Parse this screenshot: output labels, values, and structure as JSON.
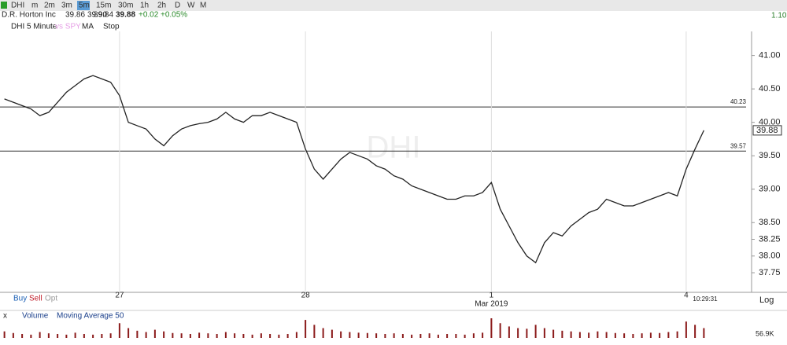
{
  "toolbar": {
    "symbol": "DHI",
    "intervals": [
      "m",
      "2m",
      "3m",
      "5m",
      "15m",
      "30m",
      "1h",
      "2h",
      "D",
      "W",
      "M"
    ],
    "active_interval": "5m",
    "right_value": "1.10"
  },
  "quote": {
    "name": "D.R. Horton Inc",
    "open": "39.86",
    "high": "39.90",
    "low": "39.84",
    "last": "39.88",
    "change": "+0.02",
    "change_pct": "+0.05%"
  },
  "study_bar": {
    "label": "DHI 5 Minute",
    "compare": "vs SPY",
    "ma": "MA",
    "stop": "Stop"
  },
  "chart_data": {
    "type": "line",
    "watermark": "DHI",
    "color": "#222222",
    "categories": [
      null,
      null,
      null,
      null,
      null,
      null,
      null,
      null,
      null,
      null,
      null,
      null,
      null,
      "27",
      null,
      null,
      null,
      null,
      null,
      null,
      null,
      null,
      null,
      null,
      null,
      null,
      null,
      null,
      null,
      null,
      null,
      null,
      null,
      null,
      "28",
      null,
      null,
      null,
      null,
      null,
      null,
      null,
      null,
      null,
      null,
      null,
      null,
      null,
      null,
      null,
      null,
      null,
      null,
      null,
      null,
      "1",
      null,
      null,
      null,
      null,
      null,
      null,
      null,
      null,
      null,
      null,
      null,
      null,
      null,
      null,
      null,
      null,
      null,
      null,
      null,
      null,
      null,
      "4",
      null,
      null
    ],
    "month_label": "Mar 2019",
    "values": [
      40.35,
      40.3,
      40.25,
      40.2,
      40.1,
      40.15,
      40.3,
      40.45,
      40.55,
      40.65,
      40.7,
      40.65,
      40.6,
      40.4,
      40.0,
      39.95,
      39.9,
      39.75,
      39.65,
      39.8,
      39.9,
      39.95,
      39.98,
      40.0,
      40.05,
      40.15,
      40.05,
      40.0,
      40.1,
      40.1,
      40.15,
      40.1,
      40.05,
      40.0,
      39.6,
      39.3,
      39.15,
      39.3,
      39.45,
      39.55,
      39.5,
      39.45,
      39.35,
      39.3,
      39.2,
      39.15,
      39.05,
      39.0,
      38.95,
      38.9,
      38.85,
      38.85,
      38.9,
      38.9,
      38.95,
      39.1,
      38.7,
      38.45,
      38.2,
      38.0,
      37.9,
      38.2,
      38.35,
      38.3,
      38.45,
      38.55,
      38.65,
      38.7,
      38.85,
      38.8,
      38.75,
      38.75,
      38.8,
      38.85,
      38.9,
      38.95,
      38.9,
      39.3,
      39.6,
      39.88
    ],
    "ylim": [
      37.48,
      41.36
    ],
    "yticks": [
      {
        "value": 41,
        "label": "41.00"
      },
      {
        "value": 40.5,
        "label": "40.50"
      },
      {
        "value": 40,
        "label": "40.00"
      },
      {
        "value": 39.5,
        "label": "39.50"
      },
      {
        "value": 39,
        "label": "39.00"
      },
      {
        "value": 38.5,
        "label": "38.50"
      },
      {
        "value": 38.25,
        "label": "38.25"
      },
      {
        "value": 38,
        "label": "38.00"
      },
      {
        "value": 37.75,
        "label": "37.75"
      }
    ],
    "levels": [
      {
        "value": 40.23,
        "label": "40.23"
      },
      {
        "value": 39.57,
        "label": "39.57"
      }
    ],
    "last_label": "39.88",
    "time_label": "10:29:31",
    "scale_label": "Log"
  },
  "trade_bar": {
    "buy": "Buy",
    "sell": "Sell",
    "opt": "Opt"
  },
  "volume_panel": {
    "close": "x",
    "title": "Volume",
    "ma": "Moving Average 50",
    "label": "56.9K",
    "color": "#8b1a1a",
    "values": [
      20,
      15,
      12,
      10,
      18,
      14,
      12,
      10,
      16,
      12,
      10,
      12,
      14,
      45,
      30,
      22,
      18,
      25,
      20,
      15,
      14,
      12,
      16,
      14,
      12,
      18,
      14,
      12,
      10,
      14,
      12,
      10,
      12,
      18,
      55,
      40,
      30,
      25,
      20,
      18,
      16,
      15,
      14,
      12,
      14,
      12,
      10,
      12,
      14,
      10,
      12,
      12,
      10,
      14,
      16,
      60,
      45,
      35,
      30,
      28,
      40,
      30,
      25,
      22,
      20,
      18,
      16,
      20,
      18,
      15,
      14,
      12,
      14,
      16,
      15,
      18,
      20,
      50,
      40,
      30
    ],
    "ylim": [
      0,
      60
    ]
  }
}
